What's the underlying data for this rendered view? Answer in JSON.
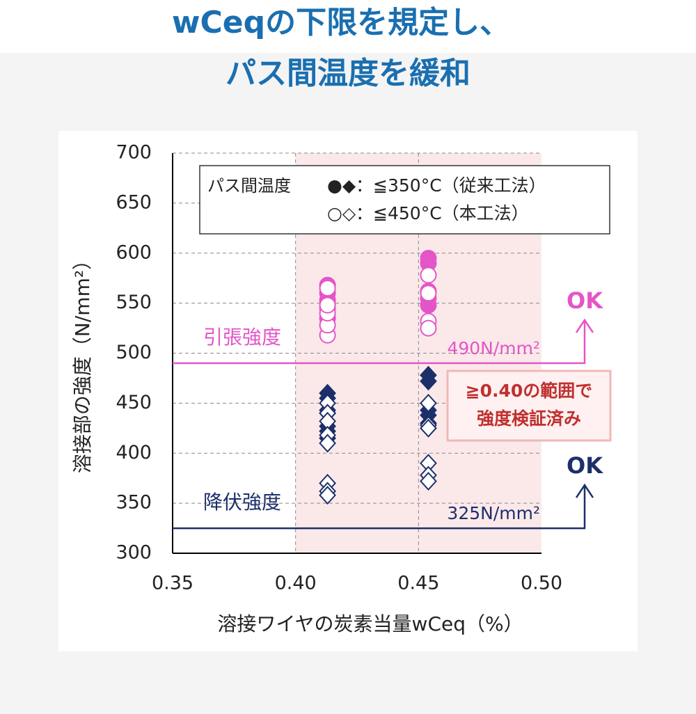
{
  "title_lines": [
    "wCeqの下限を規定し、",
    "パス間温度を緩和"
  ],
  "chart_data": {
    "type": "scatter",
    "x_label": "溶接ワイヤの炭素当量wCeq（%）",
    "y_label": "溶接部の強度（N/mm²）",
    "xlim": [
      0.35,
      0.5
    ],
    "ylim": [
      300,
      700
    ],
    "xticks": [
      0.35,
      {
        "value": 0.4,
        "label": "0.40"
      },
      0.45,
      {
        "value": 0.5,
        "label": "0.50"
      }
    ],
    "yticks": [
      300,
      350,
      400,
      450,
      500,
      550,
      600,
      650,
      700
    ],
    "grid": true,
    "highlight_xlim": [
      0.4,
      0.5
    ],
    "highlight_color": "#fbe9ea",
    "legend_title": "パス間温度",
    "legend": [
      "●◆：≦350°C（従来工法）",
      "○◇：≦450°C（本工法）"
    ],
    "series": [
      {
        "marker": "circle",
        "filled": true,
        "color": "#e455c8",
        "x": [
          0.413,
          0.413,
          0.413,
          0.413,
          0.413,
          0.454,
          0.454,
          0.454,
          0.454,
          0.454
        ],
        "values": [
          568,
          560,
          553,
          545,
          535,
          595,
          590,
          562,
          555,
          548
        ]
      },
      {
        "marker": "circle",
        "filled": false,
        "color": "#e455c8",
        "x": [
          0.413,
          0.413,
          0.413,
          0.413,
          0.413,
          0.454,
          0.454,
          0.454,
          0.454
        ],
        "values": [
          518,
          528,
          540,
          548,
          565,
          578,
          560,
          532,
          525
        ]
      },
      {
        "marker": "diamond",
        "filled": true,
        "color": "#1c2f6b",
        "x": [
          0.413,
          0.413,
          0.413,
          0.413,
          0.413,
          0.413,
          0.413,
          0.454,
          0.454,
          0.454,
          0.454,
          0.454
        ],
        "values": [
          460,
          455,
          443,
          440,
          427,
          422,
          415,
          478,
          472,
          443,
          438,
          430
        ]
      },
      {
        "marker": "diamond",
        "filled": false,
        "color": "#1c2f6b",
        "x": [
          0.413,
          0.413,
          0.413,
          0.413,
          0.413,
          0.413,
          0.413,
          0.413,
          0.454,
          0.454,
          0.454,
          0.454,
          0.454,
          0.454
        ],
        "values": [
          450,
          440,
          432,
          418,
          410,
          370,
          362,
          358,
          450,
          428,
          425,
          390,
          378,
          372
        ]
      }
    ],
    "thresholds": [
      {
        "value": 490,
        "label": "490N/mm²",
        "name": "引張強度",
        "result": "OK",
        "color": "#e455c8"
      },
      {
        "value": 325,
        "label": "325N/mm²",
        "name": "降伏強度",
        "result": "OK",
        "color": "#1c2f6b"
      }
    ],
    "annotation": [
      "≧0.40の範囲で",
      "強度検証済み"
    ]
  }
}
